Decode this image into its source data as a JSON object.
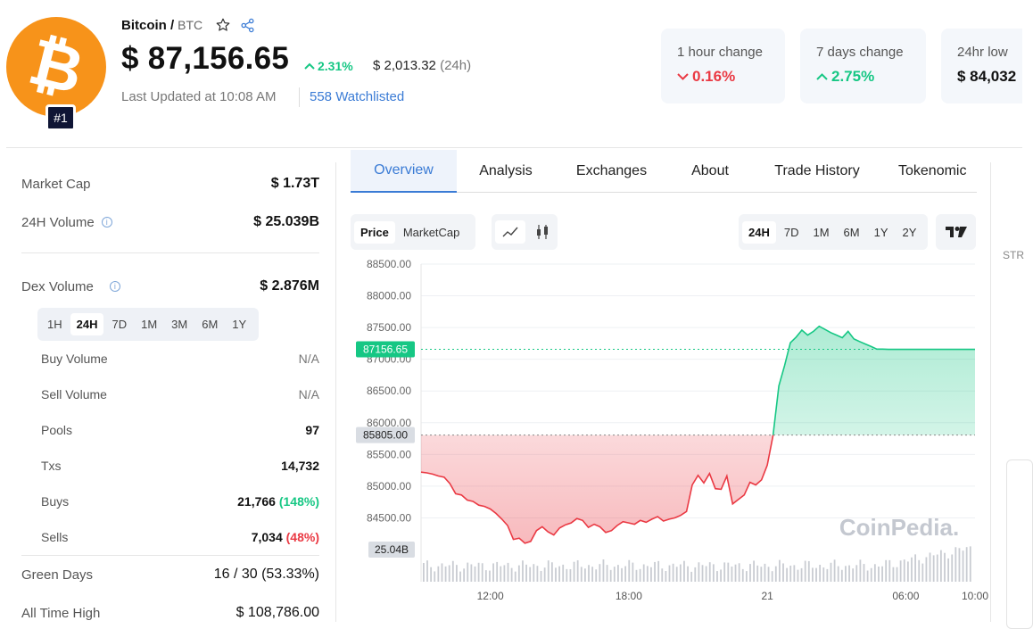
{
  "coin": {
    "name": "Bitcoin /",
    "symbol": "BTC",
    "rank": "#1",
    "price": "$ 87,156.65",
    "change_pct": "2.31%",
    "change_abs": "$ 2,013.32",
    "change_period": "(24h)",
    "last_updated": "Last Updated at 10:08 AM",
    "watchlisted": "558 Watchlisted",
    "logo_glyph": "₿"
  },
  "stats": [
    {
      "label": "1 hour change",
      "value": "0.16%",
      "direction": "down"
    },
    {
      "label": "7 days change",
      "value": "2.75%",
      "direction": "up"
    },
    {
      "label": "24hr low",
      "value": "$ 84,032",
      "direction": "none"
    }
  ],
  "left_panel": {
    "market_cap": {
      "label": "Market Cap",
      "value": "$ 1.73T"
    },
    "volume_24h": {
      "label": "24H Volume",
      "value": "$ 25.039B"
    },
    "dex_volume": {
      "label": "Dex Volume",
      "value": "$ 2.876M"
    },
    "periods": [
      "1H",
      "24H",
      "7D",
      "1M",
      "3M",
      "6M",
      "1Y"
    ],
    "active_period": "24H",
    "rows": [
      {
        "label": "Buy Volume",
        "value": "N/A"
      },
      {
        "label": "Sell Volume",
        "value": "N/A"
      },
      {
        "label": "Pools",
        "value": "97"
      },
      {
        "label": "Txs",
        "value": "14,732"
      },
      {
        "label": "Buys",
        "value": "21,766",
        "extra": "(148%)"
      },
      {
        "label": "Sells",
        "value": "7,034",
        "extra": "(48%)"
      }
    ],
    "green_days": {
      "label": "Green Days",
      "value": "16 / 30 (53.33%)"
    },
    "ath": {
      "label": "All Time High",
      "value": "$ 108,786.00"
    }
  },
  "tabs": [
    "Overview",
    "Analysis",
    "Exchanges",
    "About",
    "Trade History",
    "Tokenomic"
  ],
  "active_tab": "Overview",
  "chart_toolbar": {
    "metric": [
      "Price",
      "MarketCap"
    ],
    "active_metric": "Price",
    "ranges": [
      "24H",
      "7D",
      "1M",
      "6M",
      "1Y",
      "2Y"
    ],
    "active_range": "24H",
    "side_label": "STR"
  },
  "colors": {
    "up": "#16c784",
    "down": "#ea3943",
    "accent": "#3a7bd5",
    "brand": "#f7931a"
  },
  "chart_data": {
    "type": "area",
    "title": "",
    "y_ticks": [
      "88500.00",
      "88000.00",
      "87500.00",
      "87000.00",
      "86500.00",
      "86000.00",
      "85500.00",
      "85000.00",
      "84500.00"
    ],
    "ylim": [
      84000,
      88500
    ],
    "x_ticks": [
      "12:00",
      "18:00",
      "21",
      "06:00",
      "10:00"
    ],
    "baseline": 85805,
    "baseline_label": "85805.00",
    "current": 87156.65,
    "current_label": "87156.65",
    "volume_label": "25.04B",
    "watermark": "CoinPedia.",
    "x": [
      0,
      0.5,
      1,
      1.5,
      2,
      2.5,
      3,
      3.5,
      4,
      4.5,
      5,
      5.5,
      6,
      6.5,
      7,
      7.5,
      8,
      8.5,
      9,
      9.5,
      10,
      10.5,
      11,
      11.5,
      12,
      12.5,
      13,
      13.5,
      14,
      14.5,
      15,
      15.5,
      16,
      16.5,
      17,
      17.5,
      18,
      18.5,
      19,
      19.5,
      20,
      20.5,
      21,
      21.5,
      22,
      22.5,
      23,
      23.5,
      24,
      24.5,
      25,
      25.5,
      26,
      26.5,
      27,
      27.5,
      28,
      28.5,
      29,
      29.5,
      30,
      30.5,
      31,
      31.5,
      32,
      32.5,
      33,
      33.5,
      34,
      34.5,
      35,
      35.5,
      36,
      36.5,
      37,
      37.5,
      38,
      38.5,
      39,
      39.5,
      40,
      40.5,
      41,
      41.5,
      42,
      42.5,
      43,
      43.5,
      44,
      44.5,
      45,
      45.5,
      46,
      46.5,
      47,
      47.5,
      48
    ],
    "values": [
      85220,
      85210,
      85190,
      85160,
      85140,
      85040,
      84880,
      84860,
      84780,
      84760,
      84700,
      84680,
      84640,
      84570,
      84480,
      84380,
      84160,
      84180,
      84100,
      84130,
      84300,
      84360,
      84280,
      84230,
      84340,
      84390,
      84420,
      84490,
      84460,
      84350,
      84400,
      84360,
      84270,
      84300,
      84380,
      84440,
      84420,
      84400,
      84460,
      84430,
      84480,
      84520,
      84450,
      84480,
      84500,
      84540,
      84600,
      85020,
      85170,
      85050,
      85200,
      84960,
      84950,
      85160,
      84720,
      84790,
      84860,
      85060,
      85020,
      85100,
      85330,
      85800,
      86580,
      86900,
      87260,
      87350,
      87460,
      87380,
      87440,
      87520,
      87470,
      87420,
      87380,
      87340,
      87440,
      87320,
      87280,
      87240,
      87200,
      87160,
      87160,
      87156,
      87156,
      87156,
      87156,
      87156,
      87156,
      87156,
      87156,
      87156,
      87156,
      87156,
      87156,
      87156,
      87156,
      87156,
      87156
    ]
  }
}
